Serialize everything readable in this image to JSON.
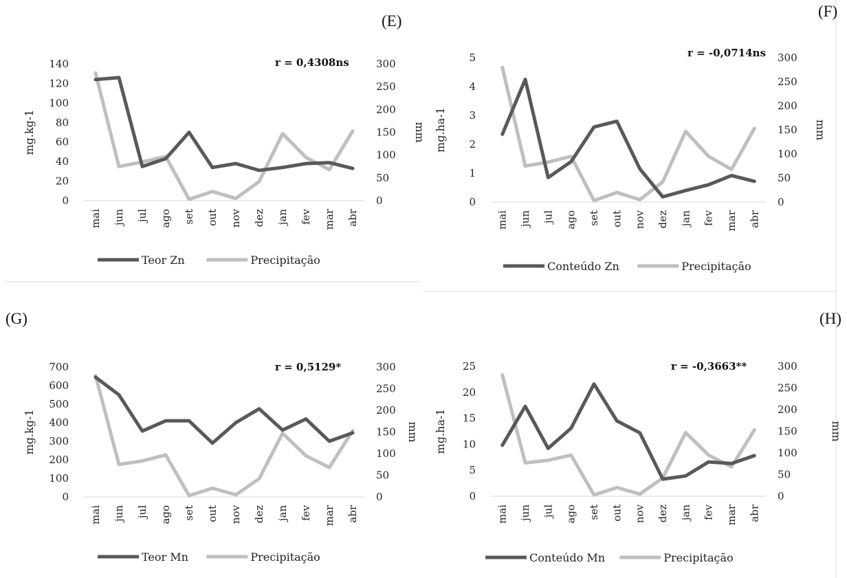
{
  "colors": {
    "primary_series": "#595959",
    "precipitation_series": "#bfbfbf",
    "frame": "#d9d9d9"
  },
  "chart_data": [
    {
      "panel": "(E)",
      "type": "line",
      "categories": [
        "mai",
        "jun",
        "jul",
        "ago",
        "set",
        "out",
        "nov",
        "dez",
        "jan",
        "fev",
        "mar",
        "abr"
      ],
      "ylabel": "mg.kg-1",
      "y2label": "mm",
      "ylim": [
        0,
        140
      ],
      "yticks": [
        "0",
        "20",
        "40",
        "60",
        "80",
        "100",
        "120",
        "140"
      ],
      "y2lim": [
        0,
        300
      ],
      "y2ticks": [
        "0",
        "50",
        "100",
        "150",
        "200",
        "250",
        "300"
      ],
      "annotation": "r = 0,4308ns",
      "series": [
        {
          "name": "Teor Zn",
          "axis": "left",
          "values": [
            124,
            126,
            35,
            43,
            70,
            34,
            38,
            31,
            34,
            38,
            39,
            33
          ]
        },
        {
          "name": "Precipitação",
          "axis": "right",
          "values": [
            280,
            75,
            85,
            97,
            3,
            20,
            5,
            42,
            147,
            95,
            68,
            153
          ]
        }
      ],
      "legend": "bottom"
    },
    {
      "panel": "(F)",
      "type": "line",
      "categories": [
        "mai",
        "jun",
        "jul",
        "ago",
        "set",
        "out",
        "nov",
        "dez",
        "jan",
        "fev",
        "mar",
        "abr"
      ],
      "ylabel": "mg.ha-1",
      "y2label": "mm",
      "ylim": [
        0,
        5
      ],
      "yticks": [
        "0",
        "1",
        "2",
        "3",
        "4",
        "5"
      ],
      "y2lim": [
        0,
        300
      ],
      "y2ticks": [
        "0",
        "50",
        "100",
        "150",
        "200",
        "250",
        "300"
      ],
      "annotation": "r = -0,0714ns",
      "series": [
        {
          "name": "Conteúdo Zn",
          "axis": "left",
          "values": [
            2.35,
            4.25,
            0.85,
            1.4,
            2.6,
            2.8,
            1.15,
            0.18,
            0.4,
            0.6,
            0.92,
            0.72
          ]
        },
        {
          "name": "Precipitação",
          "axis": "right",
          "values": [
            280,
            75,
            83,
            95,
            3,
            20,
            5,
            42,
            147,
            95,
            68,
            153
          ]
        }
      ],
      "legend": "bottom"
    },
    {
      "panel": "(G)",
      "type": "line",
      "categories": [
        "mai",
        "jun",
        "jul",
        "ago",
        "set",
        "out",
        "nov",
        "dez",
        "jan",
        "fev",
        "mar",
        "abr"
      ],
      "ylabel": "mg.kg-1",
      "y2label": "mm",
      "ylim": [
        0,
        700
      ],
      "yticks": [
        "0",
        "100",
        "200",
        "300",
        "400",
        "500",
        "600",
        "700"
      ],
      "y2lim": [
        0,
        300
      ],
      "y2ticks": [
        "0",
        "50",
        "100",
        "150",
        "200",
        "250",
        "300"
      ],
      "annotation": "r = 0,5129*",
      "series": [
        {
          "name": "Teor Mn",
          "axis": "left",
          "values": [
            645,
            550,
            355,
            410,
            410,
            290,
            400,
            475,
            360,
            420,
            300,
            345
          ]
        },
        {
          "name": "Precipitação",
          "axis": "right",
          "values": [
            280,
            75,
            83,
            97,
            3,
            20,
            5,
            42,
            147,
            95,
            68,
            153
          ]
        }
      ],
      "legend": "bottom"
    },
    {
      "panel": "(H)",
      "type": "line",
      "categories": [
        "mai",
        "jun",
        "jul",
        "ago",
        "set",
        "out",
        "nov",
        "dez",
        "jan",
        "fev",
        "mar",
        "abr"
      ],
      "ylabel": "mg.ha-1",
      "y2label": "mm",
      "ylim": [
        0,
        25
      ],
      "yticks": [
        "0",
        "5",
        "10",
        "15",
        "20",
        "25"
      ],
      "y2lim": [
        0,
        300
      ],
      "y2ticks": [
        "0",
        "50",
        "100",
        "150",
        "200",
        "250",
        "300"
      ],
      "annotation": "r = -0,3663**",
      "series": [
        {
          "name": "Conteúdo Mn",
          "axis": "left",
          "values": [
            9.8,
            17.3,
            9.2,
            13.1,
            21.6,
            14.5,
            12.2,
            3.3,
            3.9,
            6.6,
            6.3,
            7.8
          ]
        },
        {
          "name": "Precipitação",
          "axis": "right",
          "values": [
            280,
            77,
            83,
            95,
            3,
            20,
            5,
            42,
            147,
            95,
            68,
            153
          ]
        }
      ],
      "legend": "bottom"
    }
  ]
}
